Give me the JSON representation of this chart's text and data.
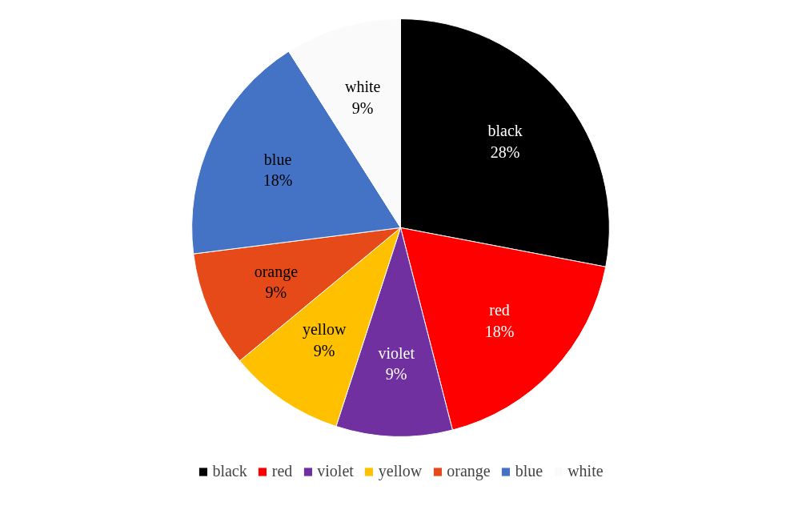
{
  "chart_data": {
    "type": "pie",
    "categories": [
      "black",
      "red",
      "violet",
      "yellow",
      "orange",
      "blue",
      "white"
    ],
    "values": [
      28,
      18,
      9,
      9,
      9,
      18,
      9
    ],
    "value_labels": [
      "28%",
      "18%",
      "9%",
      "9%",
      "9%",
      "18%",
      "9%"
    ],
    "colors": [
      "#000000",
      "#ff0000",
      "#7030a0",
      "#ffc000",
      "#e64a19",
      "#4472c4",
      "#fafafa"
    ],
    "legend": "bottom"
  }
}
